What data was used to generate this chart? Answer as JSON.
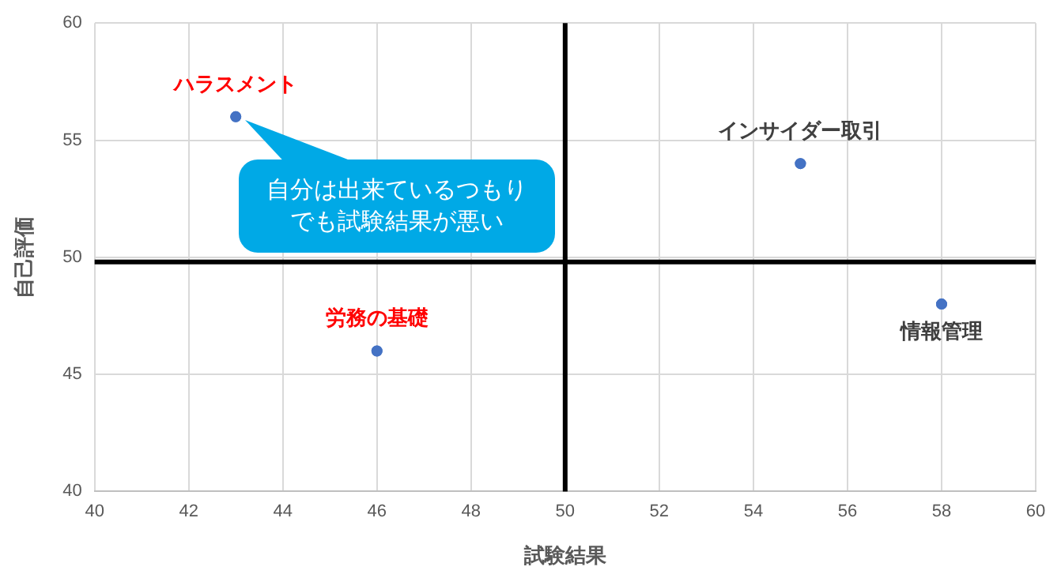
{
  "chart_data": {
    "type": "scatter",
    "xlabel": "試験結果",
    "ylabel": "自己評価",
    "series": [
      {
        "color": "#4472c4",
        "x": [
          43,
          46,
          55,
          58
        ],
        "values": [
          56,
          46,
          54,
          48
        ]
      }
    ],
    "xlim": [
      40,
      60
    ],
    "xticks": [
      40,
      42,
      44,
      46,
      48,
      50,
      52,
      54,
      56,
      58,
      60
    ],
    "ylim": [
      40,
      60
    ],
    "yticks": [
      40,
      45,
      50,
      55,
      60
    ],
    "grid": true,
    "marker": "circle",
    "ref_lines": [
      {
        "axis": "x",
        "value": 50,
        "color": "#000000"
      },
      {
        "axis": "y",
        "value": 49.8,
        "color": "#000000"
      }
    ],
    "annotations": [
      {
        "text": "ハラスメント",
        "x": 43,
        "y": 56
      },
      {
        "text": "労務の基礎",
        "x": 46,
        "y": 46
      },
      {
        "text": "インサイダー取引",
        "x": 55,
        "y": 54
      },
      {
        "text": "情報管理",
        "x": 58,
        "y": 48
      },
      {
        "text": "自分は出来ているつもりでも試験結果が悪い",
        "x": 43,
        "y": 56
      }
    ]
  }
}
